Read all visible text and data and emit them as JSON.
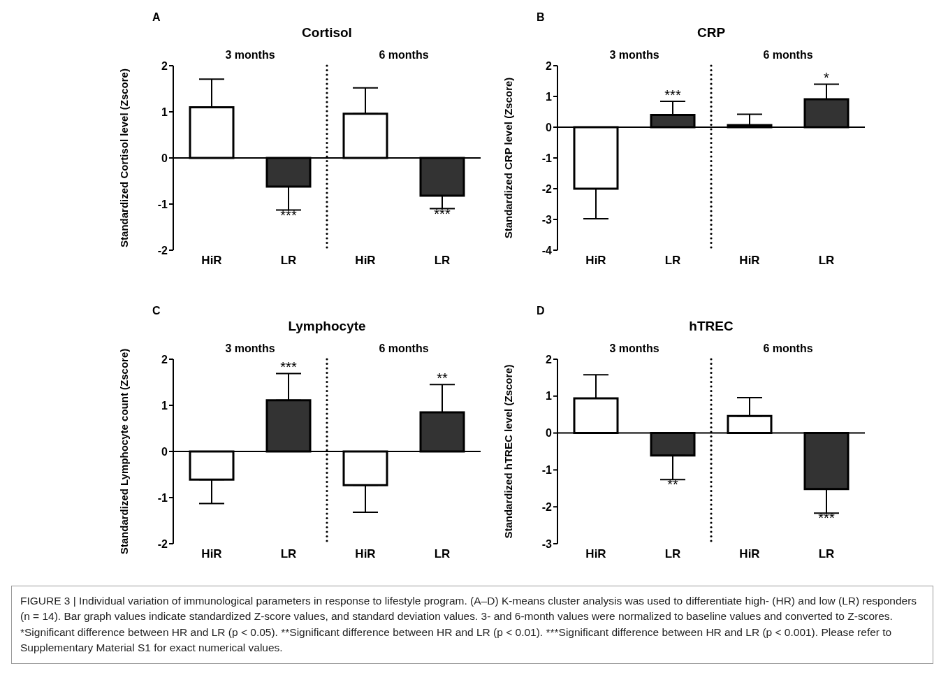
{
  "chart_data": [
    {
      "type": "bar",
      "title": "Cortisol",
      "ylabel": "Standardized Cortisol level (Zscore)",
      "categories": [
        "HiR",
        "LR",
        "HiR",
        "LR"
      ],
      "values": [
        1.1,
        -0.62,
        0.96,
        -0.82
      ],
      "colors": [
        "#ffffff",
        "#333333",
        "#ffffff",
        "#333333"
      ],
      "errors": [
        [
          1.1,
          1.71
        ],
        [
          -1.13,
          -0.62
        ],
        [
          0.96,
          1.52
        ],
        [
          -1.1,
          -0.82
        ]
      ],
      "value_labels": [
        null,
        "***",
        null,
        "***"
      ],
      "ylim": [
        -2,
        2
      ],
      "yticks": [
        -2,
        -1,
        0,
        1,
        2
      ],
      "annotations": [
        "A",
        "3 months",
        "6 months"
      ]
    },
    {
      "type": "bar",
      "title": "CRP",
      "ylabel": "Standardized CRP level (Zscore)",
      "categories": [
        "HiR",
        "LR",
        "HiR",
        "LR"
      ],
      "values": [
        -2.0,
        0.4,
        0.07,
        0.91
      ],
      "colors": [
        "#ffffff",
        "#333333",
        "#ffffff",
        "#333333"
      ],
      "errors": [
        [
          -2.98,
          -2.0
        ],
        [
          0.4,
          0.84
        ],
        [
          0.07,
          0.42
        ],
        [
          0.91,
          1.4
        ]
      ],
      "value_labels": [
        null,
        "***",
        null,
        "*"
      ],
      "ylim": [
        -4,
        2
      ],
      "yticks": [
        -4,
        -3,
        -2,
        -1,
        0,
        1,
        2
      ],
      "annotations": [
        "B",
        "3 months",
        "6 months"
      ]
    },
    {
      "type": "bar",
      "title": "Lymphocyte",
      "ylabel": "Standardized Lymphocyte count (Zscore)",
      "categories": [
        "HiR",
        "LR",
        "HiR",
        "LR"
      ],
      "values": [
        -0.61,
        1.11,
        -0.73,
        0.85
      ],
      "colors": [
        "#ffffff",
        "#333333",
        "#ffffff",
        "#333333"
      ],
      "errors": [
        [
          -1.13,
          -0.61
        ],
        [
          1.11,
          1.69
        ],
        [
          -1.32,
          -0.73
        ],
        [
          0.85,
          1.45
        ]
      ],
      "value_labels": [
        null,
        "***",
        null,
        "**"
      ],
      "ylim": [
        -2,
        2
      ],
      "yticks": [
        -2,
        -1,
        0,
        1,
        2
      ],
      "annotations": [
        "C",
        "3 months",
        "6 months"
      ]
    },
    {
      "type": "bar",
      "title": "hTREC",
      "ylabel": "Standardized hTREC level (Zscore)",
      "categories": [
        "HiR",
        "LR",
        "HiR",
        "LR"
      ],
      "values": [
        0.94,
        -0.61,
        0.46,
        -1.52
      ],
      "colors": [
        "#ffffff",
        "#333333",
        "#ffffff",
        "#333333"
      ],
      "errors": [
        [
          0.94,
          1.58
        ],
        [
          -1.26,
          -0.61
        ],
        [
          0.46,
          0.96
        ],
        [
          -2.17,
          -1.52
        ]
      ],
      "value_labels": [
        null,
        "**",
        null,
        "***"
      ],
      "ylim": [
        -3,
        2
      ],
      "yticks": [
        -3,
        -2,
        -1,
        0,
        1,
        2
      ],
      "annotations": [
        "D",
        "3 months",
        "6 months"
      ]
    },
    {
      "type": "other",
      "annotations": [
        "FIGURE 3 | Individual variation of immunological parameters in response to lifestyle program. (A–D) K-means cluster analysis was used to differentiate high- (HR) and low (LR) responders (n = 14). Bar graph values indicate standardized Z-score values, and standard deviation values. 3- and 6-month values were normalized to baseline values and converted to Z-scores. *Significant difference between HR and LR (p < 0.05). **Significant difference between HR and LR (p < 0.01). ***Significant difference between HR and LR (p < 0.001). Please refer to Supplementary Material S1 for exact numerical values."
      ]
    }
  ]
}
